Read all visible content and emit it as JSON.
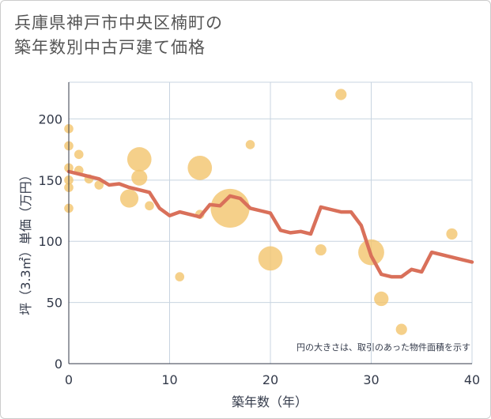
{
  "title_line1": "兵庫県神戸市中央区楠町の",
  "title_line2": "築年数別中古戸建て価格",
  "chart_data": {
    "type": "scatter",
    "xlabel": "築年数（年）",
    "ylabel": "坪（3.3㎡）単価（万円）",
    "xlim": [
      0,
      40
    ],
    "ylim": [
      0,
      230
    ],
    "xticks": [
      0,
      10,
      20,
      30,
      40
    ],
    "yticks": [
      0,
      50,
      100,
      150,
      200
    ],
    "grid": true,
    "note": "円の大きさは、取引のあった物件面積を示す",
    "colors": {
      "bubble": "#f2c46d",
      "line": "#d9705a",
      "grid": "#c8d4e0"
    },
    "bubbles": [
      {
        "x": 0,
        "y": 192,
        "size": 1
      },
      {
        "x": 0,
        "y": 178,
        "size": 1
      },
      {
        "x": 0,
        "y": 160,
        "size": 1
      },
      {
        "x": 0,
        "y": 150,
        "size": 1
      },
      {
        "x": 0,
        "y": 144,
        "size": 1
      },
      {
        "x": 0,
        "y": 127,
        "size": 1
      },
      {
        "x": 1,
        "y": 171,
        "size": 1
      },
      {
        "x": 1,
        "y": 158,
        "size": 1
      },
      {
        "x": 2,
        "y": 151,
        "size": 1
      },
      {
        "x": 3,
        "y": 146,
        "size": 1
      },
      {
        "x": 6,
        "y": 135,
        "size": 4
      },
      {
        "x": 7,
        "y": 167,
        "size": 7
      },
      {
        "x": 7,
        "y": 152,
        "size": 3
      },
      {
        "x": 8,
        "y": 129,
        "size": 1
      },
      {
        "x": 11,
        "y": 71,
        "size": 1
      },
      {
        "x": 13,
        "y": 160,
        "size": 7
      },
      {
        "x": 13,
        "y": 122,
        "size": 1
      },
      {
        "x": 16,
        "y": 127,
        "size": 18
      },
      {
        "x": 18,
        "y": 179,
        "size": 1
      },
      {
        "x": 20,
        "y": 86,
        "size": 7
      },
      {
        "x": 25,
        "y": 93,
        "size": 1.5
      },
      {
        "x": 27,
        "y": 220,
        "size": 1.5
      },
      {
        "x": 30,
        "y": 91,
        "size": 8
      },
      {
        "x": 31,
        "y": 53,
        "size": 2.5
      },
      {
        "x": 33,
        "y": 28,
        "size": 1.5
      },
      {
        "x": 38,
        "y": 106,
        "size": 1.5
      }
    ],
    "trend": {
      "x": [
        0,
        1,
        2,
        3,
        4,
        5,
        6,
        7,
        8,
        9,
        10,
        11,
        12,
        13,
        14,
        15,
        16,
        17,
        18,
        19,
        20,
        21,
        22,
        23,
        24,
        25,
        26,
        27,
        28,
        29,
        30,
        31,
        32,
        33,
        34,
        35,
        36,
        37,
        38,
        39,
        40
      ],
      "y": [
        157,
        155,
        153,
        151,
        146,
        147,
        144,
        142,
        140,
        127,
        121,
        124,
        122,
        120,
        130,
        129,
        137,
        135,
        127,
        125,
        123,
        109,
        107,
        108,
        106,
        128,
        126,
        124,
        124,
        113,
        88,
        73,
        71,
        71,
        77,
        75,
        91,
        89,
        87,
        85,
        83
      ]
    }
  }
}
